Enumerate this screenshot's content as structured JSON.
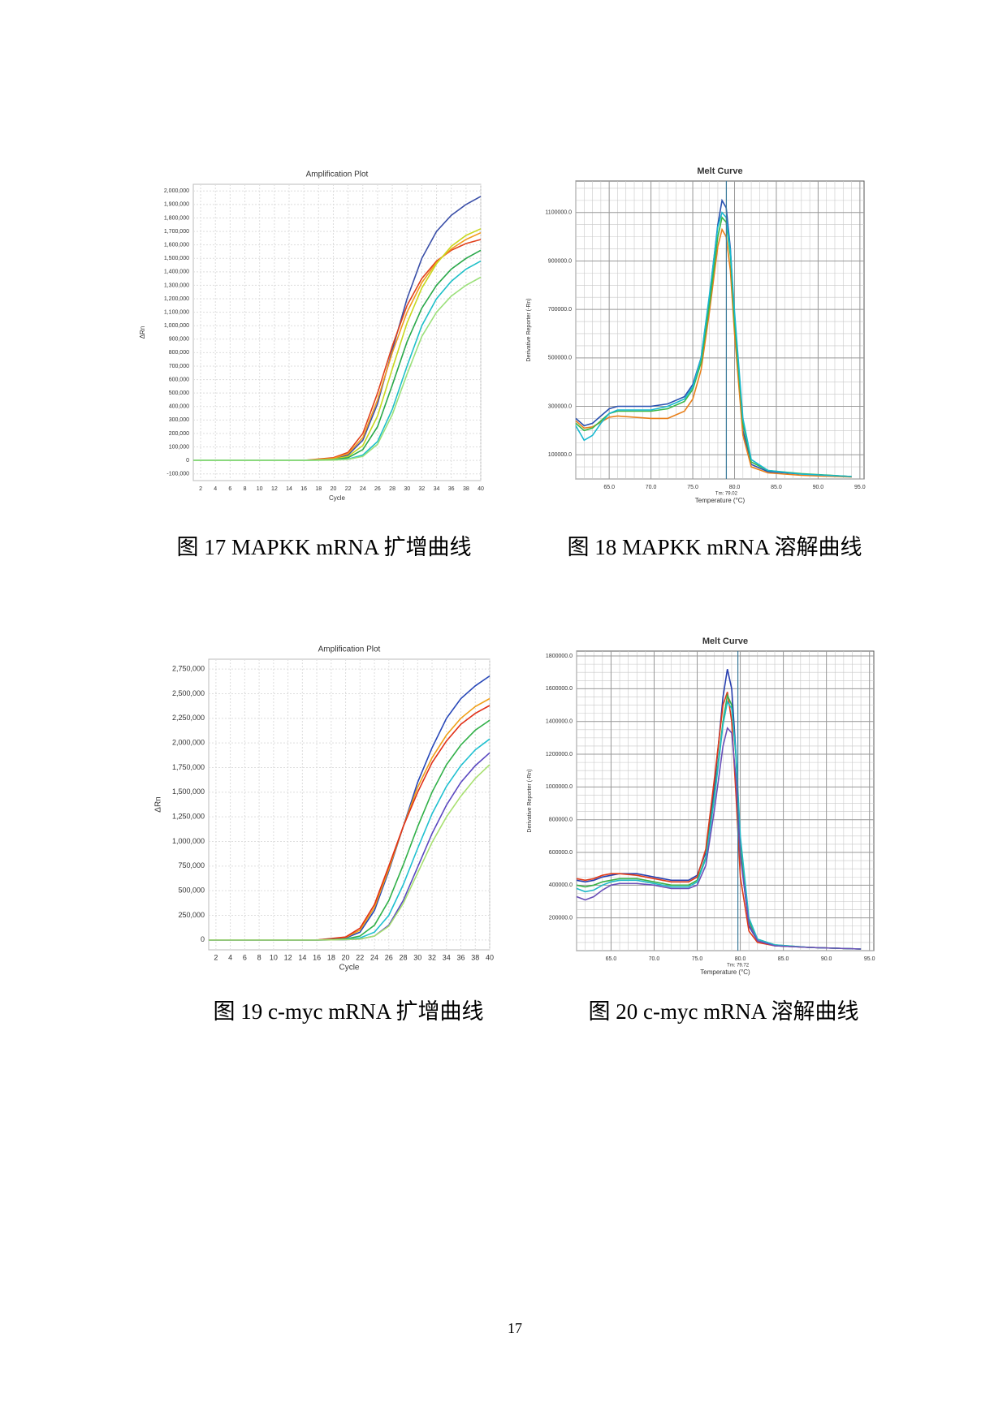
{
  "chart_data": [
    {
      "type": "line",
      "title": "Amplification Plot",
      "xlabel": "Cycle",
      "ylabel": "ΔRn",
      "grid": true,
      "x": [
        1,
        4,
        8,
        12,
        16,
        20,
        22,
        24,
        26,
        28,
        30,
        32,
        34,
        36,
        38,
        40
      ],
      "xlim": [
        1,
        40
      ],
      "xticks": [
        2,
        4,
        6,
        8,
        10,
        12,
        14,
        16,
        18,
        20,
        22,
        24,
        26,
        28,
        30,
        32,
        34,
        36,
        38,
        40
      ],
      "ylim": [
        -150000,
        2050000
      ],
      "yticks": [
        {
          "value": -100000,
          "label": "-100,000"
        },
        0,
        {
          "value": 100000,
          "label": "100,000"
        },
        {
          "value": 200000,
          "label": "200,000"
        },
        {
          "value": 300000,
          "label": "300,000"
        },
        {
          "value": 400000,
          "label": "400,000"
        },
        {
          "value": 500000,
          "label": "500,000"
        },
        {
          "value": 600000,
          "label": "600,000"
        },
        {
          "value": 700000,
          "label": "700,000"
        },
        {
          "value": 800000,
          "label": "800,000"
        },
        {
          "value": 900000,
          "label": "900,000"
        },
        {
          "value": 1000000,
          "label": "1,000,000"
        },
        {
          "value": 1100000,
          "label": "1,100,000"
        },
        {
          "value": 1200000,
          "label": "1,200,000"
        },
        {
          "value": 1300000,
          "label": "1,300,000"
        },
        {
          "value": 1400000,
          "label": "1,400,000"
        },
        {
          "value": 1500000,
          "label": "1,500,000"
        },
        {
          "value": 1600000,
          "label": "1,600,000"
        },
        {
          "value": 1700000,
          "label": "1,700,000"
        },
        {
          "value": 1800000,
          "label": "1,800,000"
        },
        {
          "value": 1900000,
          "label": "1,900,000"
        },
        {
          "value": 2000000,
          "label": "2,000,000"
        }
      ],
      "series": [
        {
          "color": "#3a4fa8",
          "values": [
            0,
            0,
            0,
            0,
            0,
            10000,
            40000,
            150000,
            420000,
            820000,
            1200000,
            1500000,
            1700000,
            1820000,
            1900000,
            1960000
          ]
        },
        {
          "color": "#e0401c",
          "values": [
            0,
            0,
            0,
            0,
            0,
            20000,
            60000,
            200000,
            500000,
            850000,
            1150000,
            1350000,
            1480000,
            1560000,
            1610000,
            1640000
          ]
        },
        {
          "color": "#f29a1c",
          "values": [
            0,
            0,
            0,
            0,
            0,
            15000,
            50000,
            170000,
            450000,
            800000,
            1100000,
            1320000,
            1470000,
            1570000,
            1640000,
            1690000
          ]
        },
        {
          "color": "#c8d820",
          "values": [
            0,
            0,
            0,
            0,
            0,
            8000,
            30000,
            110000,
            330000,
            680000,
            1020000,
            1280000,
            1460000,
            1590000,
            1670000,
            1720000
          ]
        },
        {
          "color": "#2aa84a",
          "values": [
            0,
            0,
            0,
            0,
            0,
            5000,
            20000,
            80000,
            250000,
            560000,
            880000,
            1130000,
            1300000,
            1420000,
            1500000,
            1560000
          ]
        },
        {
          "color": "#1fc0c8",
          "values": [
            0,
            0,
            0,
            0,
            0,
            3000,
            10000,
            40000,
            140000,
            380000,
            700000,
            1000000,
            1200000,
            1330000,
            1420000,
            1480000
          ]
        },
        {
          "color": "#9be07a",
          "values": [
            0,
            0,
            0,
            0,
            0,
            2000,
            8000,
            30000,
            120000,
            340000,
            640000,
            920000,
            1100000,
            1220000,
            1300000,
            1360000
          ]
        }
      ]
    },
    {
      "type": "line",
      "title": "Melt Curve",
      "xlabel": "Temperature (°C)",
      "ylabel": "Derivative Reporter (-Rn)",
      "grid": true,
      "x": [
        61,
        62,
        63,
        64,
        65,
        66,
        68,
        70,
        72,
        74,
        75,
        76,
        77,
        78,
        78.5,
        79,
        79.5,
        80,
        81,
        82,
        84,
        88,
        94
      ],
      "xlim": [
        61,
        95.5
      ],
      "xticks": [
        {
          "value": 65,
          "label": "65.0"
        },
        {
          "value": 70,
          "label": "70.0"
        },
        {
          "value": 75,
          "label": "75.0"
        },
        {
          "value": 80,
          "label": "80.0"
        },
        {
          "value": 85,
          "label": "85.0"
        },
        {
          "value": 90,
          "label": "90.0"
        },
        {
          "value": 95,
          "label": "95.0"
        }
      ],
      "ylim": [
        0,
        1230000
      ],
      "yticks": [
        {
          "value": 100000,
          "label": "100000.0"
        },
        {
          "value": 300000,
          "label": "300000.0"
        },
        {
          "value": 500000,
          "label": "500000.0"
        },
        {
          "value": 700000,
          "label": "700000.0"
        },
        {
          "value": 900000,
          "label": "900000.0"
        },
        {
          "value": 1100000,
          "label": "1100000.0"
        }
      ],
      "vline": {
        "value": 79.02,
        "label": "Tm: 79.02"
      },
      "series": [
        {
          "color": "#2850b0",
          "values": [
            250000,
            220000,
            230000,
            260000,
            290000,
            300000,
            300000,
            300000,
            310000,
            340000,
            390000,
            500000,
            750000,
            1050000,
            1150000,
            1120000,
            950000,
            650000,
            200000,
            60000,
            30000,
            20000,
            10000
          ]
        },
        {
          "color": "#e8801c",
          "values": [
            240000,
            210000,
            215000,
            235000,
            255000,
            260000,
            255000,
            250000,
            250000,
            280000,
            330000,
            450000,
            690000,
            960000,
            1030000,
            1000000,
            860000,
            600000,
            180000,
            50000,
            25000,
            15000,
            8000
          ]
        },
        {
          "color": "#38b848",
          "values": [
            230000,
            200000,
            210000,
            240000,
            270000,
            280000,
            280000,
            280000,
            290000,
            320000,
            370000,
            480000,
            720000,
            1000000,
            1080000,
            1060000,
            920000,
            650000,
            230000,
            70000,
            35000,
            22000,
            10000
          ]
        },
        {
          "color": "#18b8d0",
          "values": [
            220000,
            160000,
            180000,
            230000,
            270000,
            285000,
            285000,
            285000,
            300000,
            330000,
            380000,
            500000,
            760000,
            1040000,
            1100000,
            1080000,
            940000,
            690000,
            250000,
            80000,
            35000,
            20000,
            10000
          ]
        }
      ]
    },
    {
      "type": "line",
      "title": "Amplification Plot",
      "xlabel": "Cycle",
      "ylabel": "ΔRn",
      "grid": true,
      "x": [
        1,
        4,
        8,
        12,
        16,
        20,
        22,
        24,
        26,
        28,
        30,
        32,
        34,
        36,
        38,
        40
      ],
      "xlim": [
        1,
        40
      ],
      "xticks": [
        2,
        4,
        6,
        8,
        10,
        12,
        14,
        16,
        18,
        20,
        22,
        24,
        26,
        28,
        30,
        32,
        34,
        36,
        38,
        40
      ],
      "ylim": [
        -100000,
        2850000
      ],
      "yticks": [
        0,
        {
          "value": 250000,
          "label": "250,000"
        },
        {
          "value": 500000,
          "label": "500,000"
        },
        {
          "value": 750000,
          "label": "750,000"
        },
        {
          "value": 1000000,
          "label": "1,000,000"
        },
        {
          "value": 1250000,
          "label": "1,250,000"
        },
        {
          "value": 1500000,
          "label": "1,500,000"
        },
        {
          "value": 1750000,
          "label": "1,750,000"
        },
        {
          "value": 2000000,
          "label": "2,000,000"
        },
        {
          "value": 2250000,
          "label": "2,250,000"
        },
        {
          "value": 2500000,
          "label": "2,500,000"
        },
        {
          "value": 2750000,
          "label": "2,750,000"
        }
      ],
      "series": [
        {
          "color": "#2848b8",
          "values": [
            0,
            0,
            0,
            0,
            0,
            20000,
            80000,
            300000,
            700000,
            1150000,
            1600000,
            1950000,
            2250000,
            2450000,
            2580000,
            2680000
          ]
        },
        {
          "color": "#f0a018",
          "values": [
            0,
            0,
            0,
            0,
            0,
            25000,
            100000,
            330000,
            720000,
            1150000,
            1550000,
            1850000,
            2080000,
            2250000,
            2370000,
            2450000
          ]
        },
        {
          "color": "#e03018",
          "values": [
            0,
            0,
            0,
            0,
            0,
            30000,
            120000,
            360000,
            750000,
            1150000,
            1500000,
            1800000,
            2020000,
            2190000,
            2300000,
            2380000
          ]
        },
        {
          "color": "#30b048",
          "values": [
            0,
            0,
            0,
            0,
            0,
            10000,
            40000,
            150000,
            400000,
            760000,
            1150000,
            1500000,
            1780000,
            1980000,
            2130000,
            2230000
          ]
        },
        {
          "color": "#20c0d0",
          "values": [
            0,
            0,
            0,
            0,
            0,
            5000,
            20000,
            80000,
            250000,
            560000,
            930000,
            1280000,
            1560000,
            1770000,
            1930000,
            2040000
          ]
        },
        {
          "color": "#5a48c0",
          "values": [
            0,
            0,
            0,
            0,
            0,
            3000,
            10000,
            40000,
            150000,
            400000,
            740000,
            1080000,
            1370000,
            1600000,
            1770000,
            1900000
          ]
        },
        {
          "color": "#a8e070",
          "values": [
            0,
            0,
            0,
            0,
            0,
            3000,
            10000,
            40000,
            140000,
            370000,
            680000,
            990000,
            1250000,
            1460000,
            1640000,
            1780000
          ]
        }
      ]
    },
    {
      "type": "line",
      "title": "Melt Curve",
      "xlabel": "Temperature (°C)",
      "ylabel": "Derivative Reporter (-Rn)",
      "grid": true,
      "x": [
        61,
        62,
        63,
        64,
        65,
        66,
        68,
        70,
        72,
        74,
        75,
        76,
        77,
        78,
        78.5,
        79,
        79.5,
        80,
        81,
        82,
        84,
        88,
        94
      ],
      "xlim": [
        61,
        95.5
      ],
      "xticks": [
        {
          "value": 65,
          "label": "65.0"
        },
        {
          "value": 70,
          "label": "70.0"
        },
        {
          "value": 75,
          "label": "75.0"
        },
        {
          "value": 80,
          "label": "80.0"
        },
        {
          "value": 85,
          "label": "85.0"
        },
        {
          "value": 90,
          "label": "90.0"
        },
        {
          "value": 95,
          "label": "95.0"
        }
      ],
      "ylim": [
        0,
        1830000
      ],
      "yticks": [
        {
          "value": 200000,
          "label": "200000.0"
        },
        {
          "value": 400000,
          "label": "400000.0"
        },
        {
          "value": 600000,
          "label": "600000.0"
        },
        {
          "value": 800000,
          "label": "800000.0"
        },
        {
          "value": 1000000,
          "label": "1000000.0"
        },
        {
          "value": 1200000,
          "label": "1200000.0"
        },
        {
          "value": 1400000,
          "label": "1400000.0"
        },
        {
          "value": 1600000,
          "label": "1600000.0"
        },
        {
          "value": 1800000,
          "label": "1800000.0"
        }
      ],
      "vline": {
        "value": 79.72,
        "label": "Tm: 79.72"
      },
      "series": [
        {
          "color": "#2840b0",
          "values": [
            430000,
            420000,
            430000,
            450000,
            460000,
            470000,
            470000,
            450000,
            430000,
            430000,
            460000,
            600000,
            1000000,
            1550000,
            1720000,
            1600000,
            1200000,
            600000,
            150000,
            60000,
            30000,
            20000,
            10000
          ]
        },
        {
          "color": "#e03a18",
          "values": [
            440000,
            430000,
            440000,
            460000,
            470000,
            470000,
            460000,
            440000,
            420000,
            420000,
            450000,
            620000,
            1050000,
            1500000,
            1580000,
            1400000,
            950000,
            450000,
            120000,
            50000,
            30000,
            20000,
            10000
          ]
        },
        {
          "color": "#38b048",
          "values": [
            400000,
            390000,
            400000,
            420000,
            430000,
            440000,
            440000,
            420000,
            400000,
            400000,
            430000,
            570000,
            950000,
            1400000,
            1560000,
            1500000,
            1180000,
            650000,
            180000,
            70000,
            35000,
            20000,
            10000
          ]
        },
        {
          "color": "#20b8c8",
          "values": [
            380000,
            360000,
            370000,
            400000,
            420000,
            430000,
            430000,
            410000,
            390000,
            390000,
            420000,
            560000,
            930000,
            1380000,
            1520000,
            1480000,
            1200000,
            700000,
            200000,
            70000,
            35000,
            20000,
            10000
          ]
        },
        {
          "color": "#6a50b8",
          "values": [
            330000,
            310000,
            330000,
            370000,
            400000,
            410000,
            410000,
            400000,
            380000,
            380000,
            400000,
            520000,
            860000,
            1250000,
            1360000,
            1330000,
            1050000,
            580000,
            160000,
            60000,
            30000,
            20000,
            10000
          ]
        }
      ]
    }
  ],
  "captions": [
    "图 17 MAPKK mRNA 扩增曲线",
    "图 18 MAPKK mRNA 溶解曲线",
    "图 19 c-myc mRNA 扩增曲线",
    "图 20 c-myc mRNA 溶解曲线"
  ],
  "page_number": "17"
}
